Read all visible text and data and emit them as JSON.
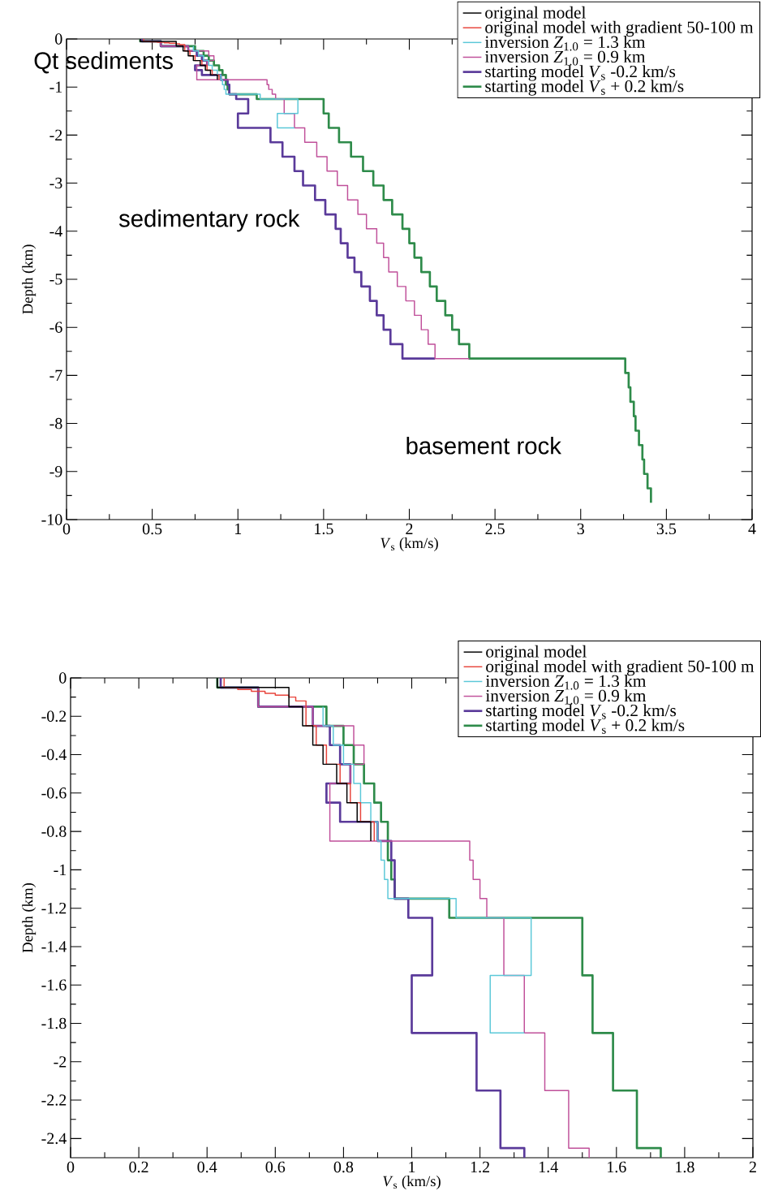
{
  "chart_data": [
    {
      "type": "line",
      "xlabel": "*V*$_{s}$ (km/s)",
      "ylabel": "Depth (km)",
      "xlim": [
        0,
        4
      ],
      "ylim": [
        -10,
        0
      ],
      "xticks": [
        0,
        0.5,
        1,
        1.5,
        2,
        2.5,
        3,
        3.5,
        4
      ],
      "yticks": [
        0,
        -1,
        -2,
        -3,
        -4,
        -5,
        -6,
        -7,
        -8,
        -9,
        -10
      ],
      "legend": "top right",
      "annotations": [
        "Qt sediments",
        "sedimentary rock",
        "basement rock"
      ],
      "series": [
        {
          "name": "original model",
          "color": "#000000",
          "x": [
            0.43,
            0.43,
            0.64,
            0.64,
            0.68,
            0.68,
            0.71,
            0.71,
            0.74,
            0.74,
            0.78,
            0.78,
            0.81,
            0.81,
            0.84,
            0.84,
            0.88,
            0.88
          ],
          "values": [
            0,
            -0.05,
            -0.05,
            -0.15,
            -0.15,
            -0.25,
            -0.25,
            -0.35,
            -0.35,
            -0.45,
            -0.45,
            -0.55,
            -0.55,
            -0.65,
            -0.65,
            -0.75,
            -0.75,
            -0.85
          ]
        },
        {
          "name": "original model with gradient 50-100 m",
          "color": "#e8453c",
          "x": [
            0.45,
            0.45,
            0.49,
            0.49,
            0.53,
            0.53,
            0.57,
            0.57,
            0.6,
            0.6,
            0.64,
            0.64,
            0.66,
            0.66,
            0.69,
            0.69,
            0.72,
            0.72,
            0.75,
            0.75,
            0.79,
            0.79,
            0.82,
            0.82,
            0.85,
            0.85,
            0.89,
            0.89
          ],
          "values": [
            0,
            -0.05,
            -0.05,
            -0.06,
            -0.06,
            -0.07,
            -0.07,
            -0.08,
            -0.08,
            -0.09,
            -0.09,
            -0.1,
            -0.1,
            -0.12,
            -0.12,
            -0.25,
            -0.25,
            -0.35,
            -0.35,
            -0.45,
            -0.45,
            -0.55,
            -0.55,
            -0.65,
            -0.65,
            -0.75,
            -0.75,
            -0.85
          ]
        },
        {
          "name": "inversion *Z*$_{1.0}$ = 1.3 km",
          "color": "#5bc8d8",
          "x": [
            0.74,
            0.74,
            0.77,
            0.77,
            0.8,
            0.8,
            0.83,
            0.83,
            0.85,
            0.85,
            0.88,
            0.88,
            0.9,
            0.9,
            0.91,
            0.91,
            0.92,
            0.92,
            0.93,
            0.93,
            1.13,
            1.13,
            1.35,
            1.35,
            1.23,
            1.23,
            1.33
          ],
          "values": [
            -0.15,
            -0.25,
            -0.25,
            -0.35,
            -0.35,
            -0.45,
            -0.45,
            -0.55,
            -0.55,
            -0.65,
            -0.65,
            -0.75,
            -0.75,
            -0.85,
            -0.85,
            -0.95,
            -0.95,
            -1.05,
            -1.05,
            -1.15,
            -1.15,
            -1.25,
            -1.25,
            -1.55,
            -1.55,
            -1.85,
            -1.85
          ]
        },
        {
          "name": "inversion *Z*$_{1.0}$ = 0.9 km",
          "color": "#c0509a",
          "x": [
            0.55,
            0.55,
            0.71,
            0.71,
            0.83,
            0.83,
            0.86,
            0.86,
            0.82,
            0.82,
            0.76,
            0.76,
            1.17,
            1.17,
            1.18,
            1.18,
            1.2,
            1.2,
            1.22,
            1.22,
            1.27,
            1.27,
            1.33,
            1.33,
            1.39,
            1.39,
            1.46,
            1.46,
            1.52,
            1.52,
            1.58,
            1.58,
            1.64,
            1.64,
            1.7,
            1.7,
            1.75,
            1.75,
            1.81,
            1.81,
            1.85,
            1.85,
            1.88,
            1.88,
            1.93,
            1.93,
            1.98,
            1.98,
            2.03,
            2.03,
            2.07,
            2.07,
            2.11,
            2.11,
            2.15,
            2.15,
            2.35
          ],
          "values": [
            -0.05,
            -0.15,
            -0.15,
            -0.25,
            -0.25,
            -0.35,
            -0.35,
            -0.45,
            -0.45,
            -0.55,
            -0.55,
            -0.85,
            -0.85,
            -0.95,
            -0.95,
            -1.05,
            -1.05,
            -1.15,
            -1.15,
            -1.25,
            -1.25,
            -1.55,
            -1.55,
            -1.85,
            -1.85,
            -2.15,
            -2.15,
            -2.45,
            -2.45,
            -2.75,
            -2.75,
            -3.05,
            -3.05,
            -3.35,
            -3.35,
            -3.65,
            -3.65,
            -3.95,
            -3.95,
            -4.25,
            -4.25,
            -4.55,
            -4.55,
            -4.85,
            -4.85,
            -5.15,
            -5.15,
            -5.45,
            -5.45,
            -5.75,
            -5.75,
            -6.05,
            -6.05,
            -6.35,
            -6.35,
            -6.65,
            -6.65
          ]
        },
        {
          "name": "starting model *V*$_{s}$ -0.2 km/s",
          "color": "#5a3a9a",
          "x": [
            0.44,
            0.44,
            0.55,
            0.55,
            0.71,
            0.71,
            0.76,
            0.76,
            0.79,
            0.79,
            0.82,
            0.82,
            0.75,
            0.75,
            0.79,
            0.79,
            0.9,
            0.9,
            0.94,
            0.94,
            0.95,
            0.95,
            0.99,
            0.99,
            1.06,
            1.06,
            1.0,
            1.0,
            1.19,
            1.19,
            1.26,
            1.26,
            1.33,
            1.33,
            1.38,
            1.38,
            1.45,
            1.45,
            1.51,
            1.51,
            1.57,
            1.57,
            1.6,
            1.6,
            1.64,
            1.64,
            1.68,
            1.68,
            1.72,
            1.72,
            1.77,
            1.77,
            1.81,
            1.81,
            1.85,
            1.85,
            1.89,
            1.89,
            1.96,
            1.96,
            2.15
          ],
          "values": [
            0,
            -0.05,
            -0.05,
            -0.15,
            -0.15,
            -0.25,
            -0.25,
            -0.35,
            -0.35,
            -0.45,
            -0.45,
            -0.55,
            -0.55,
            -0.65,
            -0.65,
            -0.75,
            -0.75,
            -0.85,
            -0.85,
            -0.95,
            -0.95,
            -1.15,
            -1.15,
            -1.25,
            -1.25,
            -1.55,
            -1.55,
            -1.85,
            -1.85,
            -2.15,
            -2.15,
            -2.45,
            -2.45,
            -2.75,
            -2.75,
            -3.05,
            -3.05,
            -3.35,
            -3.35,
            -3.65,
            -3.65,
            -3.95,
            -3.95,
            -4.25,
            -4.25,
            -4.55,
            -4.55,
            -4.85,
            -4.85,
            -5.15,
            -5.15,
            -5.45,
            -5.45,
            -5.75,
            -5.75,
            -6.05,
            -6.05,
            -6.35,
            -6.35,
            -6.65,
            -6.65
          ]
        },
        {
          "name": "starting model *V*$_{s}$ + 0.2 km/s",
          "color": "#2e8b4a",
          "x": [
            0.43,
            0.43,
            0.55,
            0.55,
            0.75,
            0.75,
            0.8,
            0.8,
            0.83,
            0.83,
            0.86,
            0.86,
            0.89,
            0.89,
            0.91,
            0.91,
            0.93,
            0.93,
            0.94,
            0.94,
            0.95,
            0.95,
            1.11,
            1.11,
            1.5,
            1.5,
            1.53,
            1.53,
            1.59,
            1.59,
            1.66,
            1.66,
            1.73,
            1.73,
            1.79,
            1.79,
            1.85,
            1.85,
            1.9,
            1.9,
            1.96,
            1.96,
            2.0,
            2.0,
            2.03,
            2.03,
            2.07,
            2.07,
            2.12,
            2.12,
            2.16,
            2.16,
            2.21,
            2.21,
            2.25,
            2.25,
            2.29,
            2.29,
            2.35,
            2.35,
            3.26,
            3.26,
            3.28,
            3.28,
            3.29,
            3.29,
            3.31,
            3.31,
            3.32,
            3.32,
            3.34,
            3.34,
            3.36,
            3.36,
            3.37,
            3.37,
            3.39,
            3.39,
            3.41,
            3.41
          ],
          "values": [
            0,
            -0.05,
            -0.05,
            -0.15,
            -0.15,
            -0.25,
            -0.25,
            -0.35,
            -0.35,
            -0.45,
            -0.45,
            -0.55,
            -0.55,
            -0.65,
            -0.65,
            -0.75,
            -0.75,
            -0.95,
            -0.95,
            -1.05,
            -1.05,
            -1.15,
            -1.15,
            -1.25,
            -1.25,
            -1.55,
            -1.55,
            -1.85,
            -1.85,
            -2.15,
            -2.15,
            -2.45,
            -2.45,
            -2.75,
            -2.75,
            -3.05,
            -3.05,
            -3.35,
            -3.35,
            -3.65,
            -3.65,
            -3.95,
            -3.95,
            -4.25,
            -4.25,
            -4.55,
            -4.55,
            -4.85,
            -4.85,
            -5.15,
            -5.15,
            -5.45,
            -5.45,
            -5.75,
            -5.75,
            -6.05,
            -6.05,
            -6.35,
            -6.35,
            -6.65,
            -6.65,
            -6.95,
            -6.95,
            -7.25,
            -7.25,
            -7.55,
            -7.55,
            -7.85,
            -7.85,
            -8.15,
            -8.15,
            -8.45,
            -8.45,
            -8.75,
            -8.75,
            -9.05,
            -9.05,
            -9.35,
            -9.35,
            -9.65
          ]
        }
      ]
    },
    {
      "type": "line",
      "xlabel": "*V*$_{s}$ (km/s)",
      "ylabel": "Depth (km)",
      "xlim": [
        0,
        2
      ],
      "ylim": [
        -2.5,
        0
      ],
      "xticks": [
        0,
        0.2,
        0.4,
        0.6,
        0.8,
        1,
        1.2,
        1.4,
        1.6,
        1.8,
        2
      ],
      "yticks": [
        0,
        -0.2,
        -0.4,
        -0.6,
        -0.8,
        -1,
        -1.2,
        -1.4,
        -1.6,
        -1.8,
        -2,
        -2.2,
        -2.4
      ],
      "legend": "top right",
      "series": [
        {
          "name": "original model",
          "color": "#000000",
          "x": [
            0.43,
            0.43,
            0.64,
            0.64,
            0.68,
            0.68,
            0.71,
            0.71,
            0.74,
            0.74,
            0.78,
            0.78,
            0.81,
            0.81,
            0.84,
            0.84,
            0.88,
            0.88
          ],
          "values": [
            0,
            -0.05,
            -0.05,
            -0.15,
            -0.15,
            -0.25,
            -0.25,
            -0.35,
            -0.35,
            -0.45,
            -0.45,
            -0.55,
            -0.55,
            -0.65,
            -0.65,
            -0.75,
            -0.75,
            -0.85
          ]
        },
        {
          "name": "original model with gradient 50-100 m",
          "color": "#e8453c",
          "x": [
            0.45,
            0.45,
            0.49,
            0.49,
            0.53,
            0.53,
            0.57,
            0.57,
            0.6,
            0.6,
            0.64,
            0.64,
            0.66,
            0.66,
            0.69,
            0.69,
            0.72,
            0.72,
            0.75,
            0.75,
            0.79,
            0.79,
            0.82,
            0.82,
            0.85,
            0.85,
            0.89,
            0.89
          ],
          "values": [
            0,
            -0.05,
            -0.05,
            -0.06,
            -0.06,
            -0.07,
            -0.07,
            -0.08,
            -0.08,
            -0.09,
            -0.09,
            -0.1,
            -0.1,
            -0.12,
            -0.12,
            -0.25,
            -0.25,
            -0.35,
            -0.35,
            -0.45,
            -0.45,
            -0.55,
            -0.55,
            -0.65,
            -0.65,
            -0.75,
            -0.75,
            -0.85
          ]
        },
        {
          "name": "inversion *Z*$_{1.0}$ = 1.3 km",
          "color": "#5bc8d8",
          "x": [
            0.74,
            0.74,
            0.77,
            0.77,
            0.8,
            0.8,
            0.83,
            0.83,
            0.85,
            0.85,
            0.88,
            0.88,
            0.9,
            0.9,
            0.91,
            0.91,
            0.92,
            0.92,
            0.93,
            0.93,
            1.13,
            1.13,
            1.35,
            1.35,
            1.23,
            1.23,
            1.33
          ],
          "values": [
            -0.15,
            -0.25,
            -0.25,
            -0.35,
            -0.35,
            -0.45,
            -0.45,
            -0.55,
            -0.55,
            -0.65,
            -0.65,
            -0.75,
            -0.75,
            -0.85,
            -0.85,
            -0.95,
            -0.95,
            -1.05,
            -1.05,
            -1.15,
            -1.15,
            -1.25,
            -1.25,
            -1.55,
            -1.55,
            -1.85,
            -1.85
          ]
        },
        {
          "name": "inversion *Z*$_{1.0}$ = 0.9 km",
          "color": "#c0509a",
          "x": [
            0.55,
            0.55,
            0.71,
            0.71,
            0.83,
            0.83,
            0.86,
            0.86,
            0.82,
            0.82,
            0.76,
            0.76,
            1.17,
            1.17,
            1.18,
            1.18,
            1.2,
            1.2,
            1.22,
            1.22,
            1.27,
            1.27,
            1.33,
            1.33,
            1.39,
            1.39,
            1.46,
            1.46,
            1.52,
            1.52
          ],
          "values": [
            -0.05,
            -0.15,
            -0.15,
            -0.25,
            -0.25,
            -0.35,
            -0.35,
            -0.45,
            -0.45,
            -0.55,
            -0.55,
            -0.85,
            -0.85,
            -0.95,
            -0.95,
            -1.05,
            -1.05,
            -1.15,
            -1.15,
            -1.25,
            -1.25,
            -1.55,
            -1.55,
            -1.85,
            -1.85,
            -2.15,
            -2.15,
            -2.45,
            -2.45,
            -2.5
          ]
        },
        {
          "name": "starting model *V*$_{s}$ -0.2 km/s",
          "color": "#5a3a9a",
          "x": [
            0.44,
            0.44,
            0.55,
            0.55,
            0.71,
            0.71,
            0.76,
            0.76,
            0.79,
            0.79,
            0.82,
            0.82,
            0.75,
            0.75,
            0.79,
            0.79,
            0.9,
            0.9,
            0.94,
            0.94,
            0.95,
            0.95,
            0.99,
            0.99,
            1.06,
            1.06,
            1.0,
            1.0,
            1.19,
            1.19,
            1.26,
            1.26,
            1.33,
            1.33
          ],
          "values": [
            0,
            -0.05,
            -0.05,
            -0.15,
            -0.15,
            -0.25,
            -0.25,
            -0.35,
            -0.35,
            -0.45,
            -0.45,
            -0.55,
            -0.55,
            -0.65,
            -0.65,
            -0.75,
            -0.75,
            -0.85,
            -0.85,
            -0.95,
            -0.95,
            -1.15,
            -1.15,
            -1.25,
            -1.25,
            -1.55,
            -1.55,
            -1.85,
            -1.85,
            -2.15,
            -2.15,
            -2.45,
            -2.45,
            -2.5
          ]
        },
        {
          "name": "starting model *V*$_{s}$ + 0.2 km/s",
          "color": "#2e8b4a",
          "x": [
            0.43,
            0.43,
            0.55,
            0.55,
            0.75,
            0.75,
            0.8,
            0.8,
            0.83,
            0.83,
            0.86,
            0.86,
            0.89,
            0.89,
            0.91,
            0.91,
            0.93,
            0.93,
            0.94,
            0.94,
            0.95,
            0.95,
            1.11,
            1.11,
            1.5,
            1.5,
            1.53,
            1.53,
            1.59,
            1.59,
            1.66,
            1.66,
            1.73,
            1.73
          ],
          "values": [
            0,
            -0.05,
            -0.05,
            -0.15,
            -0.15,
            -0.25,
            -0.25,
            -0.35,
            -0.35,
            -0.45,
            -0.45,
            -0.55,
            -0.55,
            -0.65,
            -0.65,
            -0.75,
            -0.75,
            -0.95,
            -0.95,
            -1.05,
            -1.05,
            -1.15,
            -1.15,
            -1.25,
            -1.25,
            -1.55,
            -1.55,
            -1.85,
            -1.85,
            -2.15,
            -2.15,
            -2.45,
            -2.45,
            -2.5
          ]
        }
      ]
    }
  ]
}
